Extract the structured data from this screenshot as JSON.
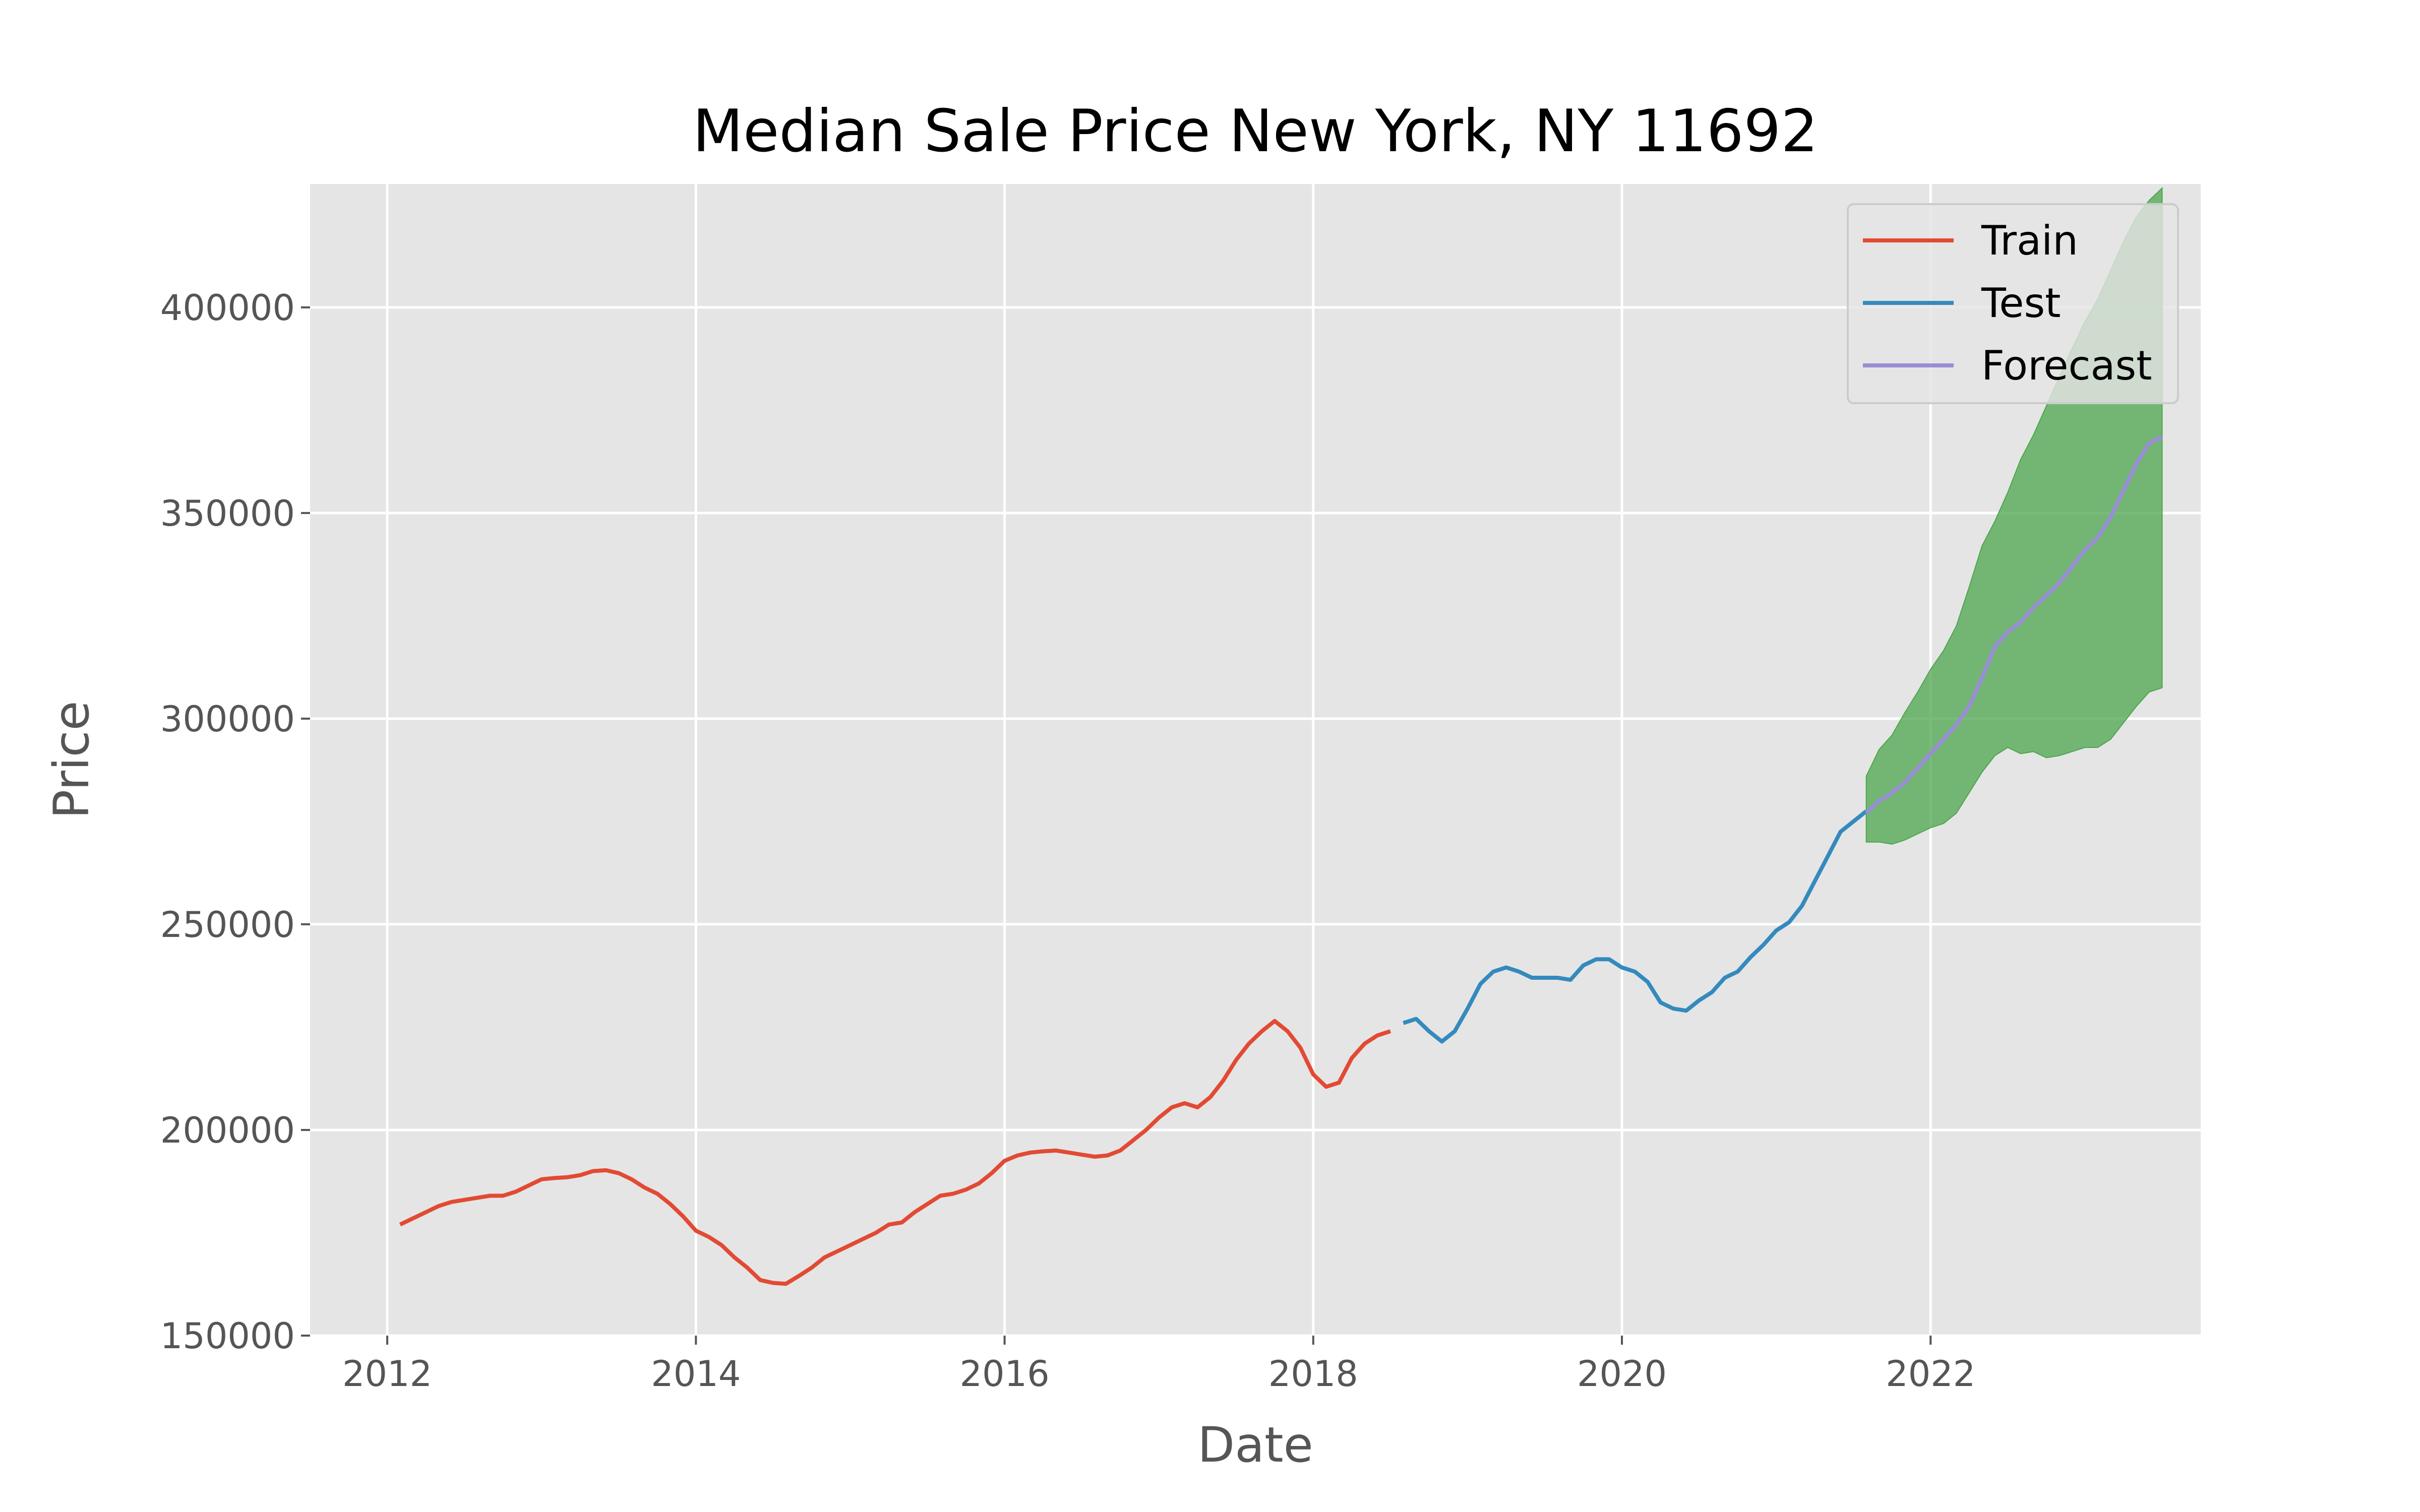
{
  "chart_data": {
    "type": "line",
    "title": "Median Sale Price New York, NY 11692",
    "xlabel": "Date",
    "ylabel": "Price",
    "x_type": "date",
    "xlim": [
      "2011-07-01",
      "2023-10-01"
    ],
    "ylim": [
      150000,
      430000
    ],
    "x_ticks": [
      "2012",
      "2014",
      "2016",
      "2018",
      "2020",
      "2022"
    ],
    "y_ticks": [
      150000,
      200000,
      250000,
      300000,
      350000,
      400000
    ],
    "grid": true,
    "legend_position": "top-right",
    "series": [
      {
        "name": "Train",
        "color": "#E24A33",
        "points": [
          [
            "2012-02-01",
            177000
          ],
          [
            "2012-03-01",
            178500
          ],
          [
            "2012-04-01",
            180000
          ],
          [
            "2012-05-01",
            181500
          ],
          [
            "2012-06-01",
            182500
          ],
          [
            "2012-07-01",
            183000
          ],
          [
            "2012-08-01",
            183500
          ],
          [
            "2012-09-01",
            184000
          ],
          [
            "2012-10-01",
            184000
          ],
          [
            "2012-11-01",
            185000
          ],
          [
            "2012-12-01",
            186500
          ],
          [
            "2013-01-01",
            188000
          ],
          [
            "2013-02-01",
            188300
          ],
          [
            "2013-03-01",
            188500
          ],
          [
            "2013-04-01",
            189000
          ],
          [
            "2013-05-01",
            190000
          ],
          [
            "2013-06-01",
            190200
          ],
          [
            "2013-07-01",
            189500
          ],
          [
            "2013-08-01",
            188000
          ],
          [
            "2013-09-01",
            186000
          ],
          [
            "2013-10-01",
            184500
          ],
          [
            "2013-11-01",
            182000
          ],
          [
            "2013-12-01",
            179000
          ],
          [
            "2014-01-01",
            175500
          ],
          [
            "2014-02-01",
            174000
          ],
          [
            "2014-03-01",
            172000
          ],
          [
            "2014-04-01",
            169000
          ],
          [
            "2014-05-01",
            166500
          ],
          [
            "2014-06-01",
            163500
          ],
          [
            "2014-07-01",
            162800
          ],
          [
            "2014-08-01",
            162600
          ],
          [
            "2014-09-01",
            164500
          ],
          [
            "2014-10-01",
            166500
          ],
          [
            "2014-11-01",
            169000
          ],
          [
            "2014-12-01",
            170500
          ],
          [
            "2015-01-01",
            172000
          ],
          [
            "2015-02-01",
            173500
          ],
          [
            "2015-03-01",
            175000
          ],
          [
            "2015-04-01",
            177000
          ],
          [
            "2015-05-01",
            177500
          ],
          [
            "2015-06-01",
            180000
          ],
          [
            "2015-07-01",
            182000
          ],
          [
            "2015-08-01",
            184000
          ],
          [
            "2015-09-01",
            184500
          ],
          [
            "2015-10-01",
            185500
          ],
          [
            "2015-11-01",
            187000
          ],
          [
            "2015-12-01",
            189500
          ],
          [
            "2016-01-01",
            192500
          ],
          [
            "2016-02-01",
            193800
          ],
          [
            "2016-03-01",
            194500
          ],
          [
            "2016-04-01",
            194800
          ],
          [
            "2016-05-01",
            195000
          ],
          [
            "2016-06-01",
            194500
          ],
          [
            "2016-07-01",
            194000
          ],
          [
            "2016-08-01",
            193500
          ],
          [
            "2016-09-01",
            193800
          ],
          [
            "2016-10-01",
            195000
          ],
          [
            "2016-11-01",
            197500
          ],
          [
            "2016-12-01",
            200000
          ],
          [
            "2017-01-01",
            203000
          ],
          [
            "2017-02-01",
            205500
          ],
          [
            "2017-03-01",
            206500
          ],
          [
            "2017-04-01",
            205500
          ],
          [
            "2017-05-01",
            208000
          ],
          [
            "2017-06-01",
            212000
          ],
          [
            "2017-07-01",
            217000
          ],
          [
            "2017-08-01",
            221000
          ],
          [
            "2017-09-01",
            224000
          ],
          [
            "2017-10-01",
            226500
          ],
          [
            "2017-11-01",
            224000
          ],
          [
            "2017-12-01",
            220000
          ],
          [
            "2018-01-01",
            213500
          ],
          [
            "2018-02-01",
            210500
          ],
          [
            "2018-03-01",
            211500
          ],
          [
            "2018-04-01",
            217500
          ],
          [
            "2018-05-01",
            221000
          ],
          [
            "2018-06-01",
            223000
          ],
          [
            "2018-07-01",
            224000
          ]
        ]
      },
      {
        "name": "Test",
        "color": "#348ABD",
        "points": [
          [
            "2018-08-01",
            226000
          ],
          [
            "2018-09-01",
            227000
          ],
          [
            "2018-10-01",
            224000
          ],
          [
            "2018-11-01",
            221500
          ],
          [
            "2018-12-01",
            224000
          ],
          [
            "2019-01-01",
            229500
          ],
          [
            "2019-02-01",
            235500
          ],
          [
            "2019-03-01",
            238500
          ],
          [
            "2019-04-01",
            239500
          ],
          [
            "2019-05-01",
            238500
          ],
          [
            "2019-06-01",
            237000
          ],
          [
            "2019-07-01",
            237000
          ],
          [
            "2019-08-01",
            237000
          ],
          [
            "2019-09-01",
            236500
          ],
          [
            "2019-10-01",
            240000
          ],
          [
            "2019-11-01",
            241500
          ],
          [
            "2019-12-01",
            241500
          ],
          [
            "2020-01-01",
            239500
          ],
          [
            "2020-02-01",
            238500
          ],
          [
            "2020-03-01",
            236000
          ],
          [
            "2020-04-01",
            231000
          ],
          [
            "2020-05-01",
            229500
          ],
          [
            "2020-06-01",
            229000
          ],
          [
            "2020-07-01",
            231500
          ],
          [
            "2020-08-01",
            233500
          ],
          [
            "2020-09-01",
            237000
          ],
          [
            "2020-10-01",
            238500
          ],
          [
            "2020-11-01",
            242000
          ],
          [
            "2020-12-01",
            245000
          ],
          [
            "2021-01-01",
            248500
          ],
          [
            "2021-02-01",
            250500
          ],
          [
            "2021-03-01",
            254500
          ],
          [
            "2021-04-01",
            260500
          ],
          [
            "2021-05-01",
            266500
          ],
          [
            "2021-06-01",
            272500
          ],
          [
            "2021-07-01",
            275000
          ],
          [
            "2021-08-01",
            277500
          ]
        ]
      },
      {
        "name": "Forecast",
        "color": "#988ED5",
        "points": [
          [
            "2021-08-01",
            277000
          ],
          [
            "2021-09-01",
            280000
          ],
          [
            "2021-10-01",
            282000
          ],
          [
            "2021-11-01",
            284500
          ],
          [
            "2021-12-01",
            288000
          ],
          [
            "2022-01-01",
            291500
          ],
          [
            "2022-02-01",
            295000
          ],
          [
            "2022-03-01",
            298500
          ],
          [
            "2022-04-01",
            303000
          ],
          [
            "2022-05-01",
            310000
          ],
          [
            "2022-06-01",
            317500
          ],
          [
            "2022-07-01",
            321000
          ],
          [
            "2022-08-01",
            323500
          ],
          [
            "2022-09-01",
            327000
          ],
          [
            "2022-10-01",
            330000
          ],
          [
            "2022-11-01",
            333000
          ],
          [
            "2022-12-01",
            337000
          ],
          [
            "2023-01-01",
            341000
          ],
          [
            "2023-02-01",
            344000
          ],
          [
            "2023-03-01",
            349000
          ],
          [
            "2023-04-01",
            355500
          ],
          [
            "2023-05-01",
            362000
          ],
          [
            "2023-06-01",
            367000
          ],
          [
            "2023-07-01",
            368500
          ]
        ]
      }
    ],
    "confidence_band": {
      "color": "#4CA64C",
      "points": [
        [
          "2021-08-01",
          270000,
          286000
        ],
        [
          "2021-09-01",
          270000,
          292500
        ],
        [
          "2021-10-01",
          269500,
          296000
        ],
        [
          "2021-11-01",
          270500,
          301500
        ],
        [
          "2021-12-01",
          272000,
          306500
        ],
        [
          "2022-01-01",
          273500,
          312000
        ],
        [
          "2022-02-01",
          274500,
          316500
        ],
        [
          "2022-03-01",
          277000,
          322500
        ],
        [
          "2022-04-01",
          282000,
          332000
        ],
        [
          "2022-05-01",
          287000,
          342000
        ],
        [
          "2022-06-01",
          291000,
          348000
        ],
        [
          "2022-07-01",
          293000,
          355000
        ],
        [
          "2022-08-01",
          291500,
          363000
        ],
        [
          "2022-09-01",
          292000,
          369000
        ],
        [
          "2022-10-01",
          290500,
          376000
        ],
        [
          "2022-11-01",
          291000,
          383000
        ],
        [
          "2022-12-01",
          292000,
          390000
        ],
        [
          "2023-01-01",
          293000,
          396500
        ],
        [
          "2023-02-01",
          293000,
          402000
        ],
        [
          "2023-03-01",
          295000,
          409000
        ],
        [
          "2023-04-01",
          299000,
          416000
        ],
        [
          "2023-05-01",
          303000,
          422000
        ],
        [
          "2023-06-01",
          306500,
          426000
        ],
        [
          "2023-07-01",
          307500,
          429000
        ]
      ]
    }
  }
}
